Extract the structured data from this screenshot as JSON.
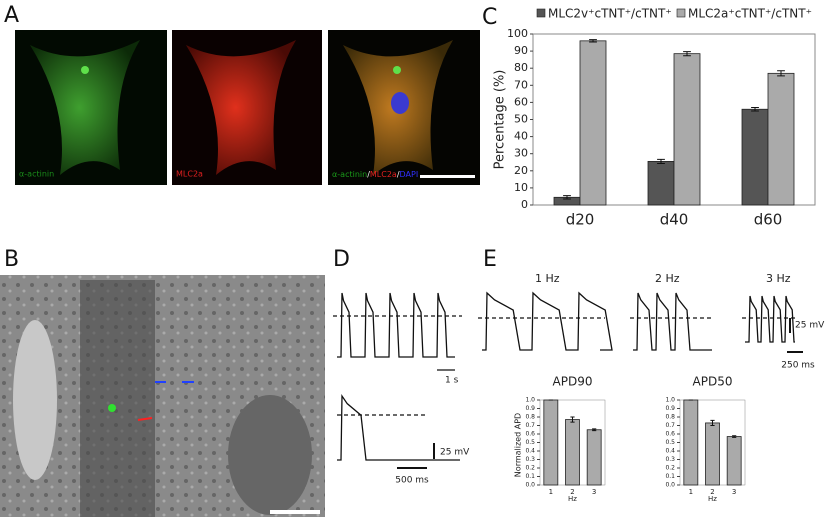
{
  "panels": {
    "A": {
      "letter": "A",
      "labels": [
        "α-actinin",
        "MLC2a"
      ],
      "merge": [
        "α-actinin",
        "/",
        "MLC2a",
        "/",
        "DAPI"
      ]
    },
    "B": {
      "letter": "B"
    },
    "C": {
      "letter": "C"
    },
    "D": {
      "letter": "D",
      "scale_top": "1 s",
      "scale_v": "25 mV",
      "scale_bottom": "500 ms"
    },
    "E": {
      "letter": "E",
      "rates": [
        "1 Hz",
        "2 Hz",
        "3 Hz"
      ],
      "scale_v": "25 mV",
      "scale_t": "250 ms"
    }
  },
  "chart_data": [
    {
      "type": "bar",
      "ylabel": "Percentage (%)",
      "categories": [
        "d20",
        "d40",
        "d60"
      ],
      "series": [
        {
          "name": "MLC2v⁺cTNT⁺/cTNT⁺",
          "color": "#555555",
          "values": [
            4.5,
            25.5,
            56
          ],
          "errors": [
            1,
            1.2,
            1
          ]
        },
        {
          "name": "MLC2a⁺cTNT⁺/cTNT⁺",
          "color": "#aaaaaa",
          "values": [
            96,
            88.5,
            77
          ],
          "errors": [
            0.7,
            1.2,
            1.5
          ]
        }
      ],
      "ylim": [
        0,
        100
      ],
      "yticks": [
        0,
        10,
        20,
        30,
        40,
        50,
        60,
        70,
        80,
        90,
        100
      ]
    },
    {
      "type": "bar",
      "title": "APD90",
      "ylabel": "Normalized APD",
      "xlabel": "Hz",
      "categories": [
        "1",
        "2",
        "3"
      ],
      "series": [
        {
          "color": "#aaaaaa",
          "values": [
            1,
            0.77,
            0.65
          ],
          "errors": [
            0,
            0.03,
            0.01
          ]
        }
      ],
      "ylim": [
        0,
        1
      ],
      "yticks": [
        {
          "value": 0,
          "label": "0.0"
        },
        {
          "value": 0.1,
          "label": "0.1"
        },
        {
          "value": 0.2,
          "label": "0.2"
        },
        {
          "value": 0.3,
          "label": "0.3"
        },
        {
          "value": 0.4,
          "label": "0.4"
        },
        {
          "value": 0.5,
          "label": "0.5"
        },
        {
          "value": 0.6,
          "label": "0.6"
        },
        {
          "value": 0.7,
          "label": "0.7"
        },
        {
          "value": 0.8,
          "label": "0.8"
        },
        {
          "value": 0.9,
          "label": "0.9"
        },
        {
          "value": 1,
          "label": "1.0"
        }
      ]
    },
    {
      "type": "bar",
      "title": "APD50",
      "xlabel": "Hz",
      "categories": [
        "1",
        "2",
        "3"
      ],
      "series": [
        {
          "color": "#aaaaaa",
          "values": [
            1,
            0.73,
            0.57
          ],
          "errors": [
            0,
            0.03,
            0.01
          ]
        }
      ],
      "ylim": [
        0,
        1
      ],
      "yticks": [
        {
          "value": 0,
          "label": "0.0"
        },
        {
          "value": 0.1,
          "label": "0.1"
        },
        {
          "value": 0.2,
          "label": "0.2"
        },
        {
          "value": 0.3,
          "label": "0.3"
        },
        {
          "value": 0.4,
          "label": "0.4"
        },
        {
          "value": 0.5,
          "label": "0.5"
        },
        {
          "value": 0.6,
          "label": "0.6"
        },
        {
          "value": 0.7,
          "label": "0.7"
        },
        {
          "value": 0.8,
          "label": "0.8"
        },
        {
          "value": 0.9,
          "label": "0.9"
        },
        {
          "value": 1,
          "label": "1.0"
        }
      ]
    }
  ]
}
